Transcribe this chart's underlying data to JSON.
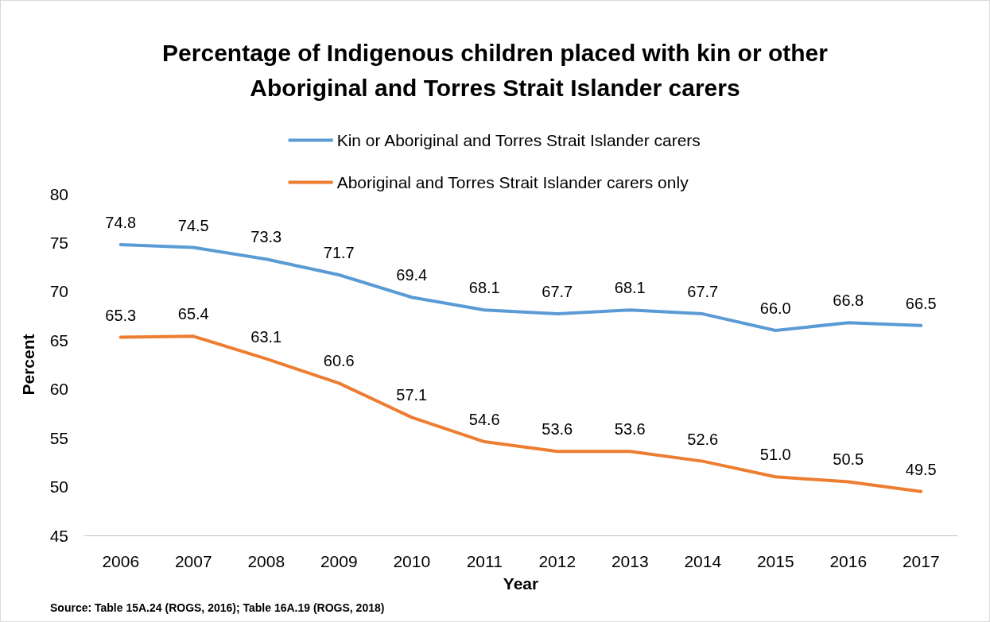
{
  "chart_data": {
    "type": "line",
    "title": "Percentage of Indigenous children placed with kin or other\nAboriginal and Torres Strait Islander carers",
    "xlabel": "Year",
    "ylabel": "Percent",
    "categories": [
      "2006",
      "2007",
      "2008",
      "2009",
      "2010",
      "2011",
      "2012",
      "2013",
      "2014",
      "2015",
      "2016",
      "2017"
    ],
    "series": [
      {
        "name": "Kin or Aboriginal and Torres Strait Islander carers",
        "color": "#5b9bd5",
        "values": [
          74.8,
          74.5,
          73.3,
          71.7,
          69.4,
          68.1,
          67.7,
          68.1,
          67.7,
          66.0,
          66.8,
          66.5
        ],
        "value_labels": [
          "74.8",
          "74.5",
          "73.3",
          "71.7",
          "69.4",
          "68.1",
          "67.7",
          "68.1",
          "67.7",
          "66.0",
          "66.8",
          "66.5"
        ]
      },
      {
        "name": "Aboriginal and Torres Strait Islander carers only",
        "color": "#ed7d31",
        "values": [
          65.3,
          65.4,
          63.1,
          60.6,
          57.1,
          54.6,
          53.6,
          53.6,
          52.6,
          51.0,
          50.5,
          49.5
        ],
        "value_labels": [
          "65.3",
          "65.4",
          "63.1",
          "60.6",
          "57.1",
          "54.6",
          "53.6",
          "53.6",
          "52.6",
          "51.0",
          "50.5",
          "49.5"
        ]
      }
    ],
    "ylim": [
      45,
      80
    ],
    "yticks": [
      45,
      50,
      55,
      60,
      65,
      70,
      75,
      80
    ],
    "grid": false,
    "legend": "top",
    "marker": "none",
    "line_style": "solid",
    "annotations": [
      "Source: Table 15A.24 (ROGS, 2016); Table 16A.19 (ROGS, 2018)"
    ]
  }
}
